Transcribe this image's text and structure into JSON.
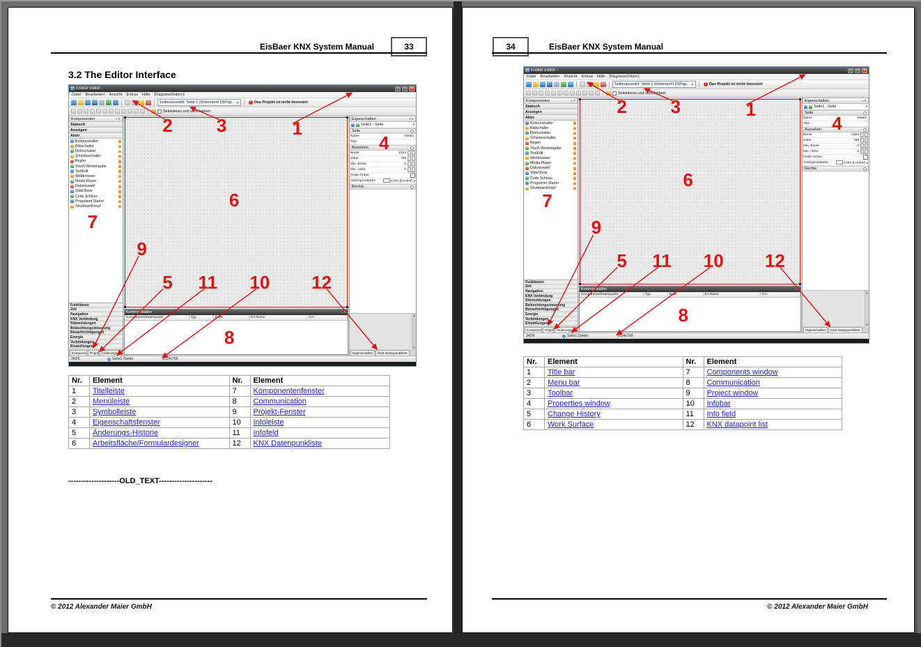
{
  "document": {
    "header_title": "EisBaer KNX System Manual",
    "footer_copyright": "© 2012 Alexander Maier GmbH"
  },
  "pages": {
    "left": {
      "page_number": "33",
      "section_heading": "3.2 The Editor Interface",
      "old_text_marker": "--------------------OLD_TEXT---------------------",
      "table": {
        "col_headers": [
          "Nr.",
          "Element",
          "Nr.",
          "Element"
        ],
        "rows": [
          {
            "n1": "1",
            "e1": "Titelleiste",
            "n2": "7",
            "e2": "Komponentenfenster"
          },
          {
            "n1": "2",
            "e1": "Menüleiste",
            "n2": "8",
            "e2": "Communication"
          },
          {
            "n1": "3",
            "e1": "Symbolleiste",
            "n2": "9",
            "e2": "Projekt-Fenster"
          },
          {
            "n1": "4",
            "e1": "Eigenschaftsfenster",
            "n2": "10",
            "e2": "Infoleiste"
          },
          {
            "n1": "5",
            "e1": "Änderungs-Historie",
            "n2": "11",
            "e2": "Infofeld"
          },
          {
            "n1": "6",
            "e1": "Arbeitsfläche/Formulardesigner",
            "n2": "12",
            "e2": "KNX Datenpunkliste"
          }
        ]
      }
    },
    "right": {
      "page_number": "34",
      "table": {
        "col_headers": [
          "Nr.",
          "Element",
          "Nr.",
          "Element"
        ],
        "rows": [
          {
            "n1": "1",
            "e1": "Title bar",
            "n2": "7",
            "e2": "Components window"
          },
          {
            "n1": "2",
            "e1": "Menu bar",
            "n2": "8",
            "e2": "Communication"
          },
          {
            "n1": "3",
            "e1": "Toolbar",
            "n2": "9",
            "e2": "Project window"
          },
          {
            "n1": "4",
            "e1": "Properties window",
            "n2": "10",
            "e2": "Infobar"
          },
          {
            "n1": "5",
            "e1": "Change History",
            "n2": "11",
            "e2": "Info field"
          },
          {
            "n1": "6",
            "e1": "Work Surface",
            "n2": "12",
            "e2": "KNX datapoint list"
          }
        ]
      }
    }
  },
  "editor": {
    "title": "EisBär Editor -",
    "window_buttons": {
      "minimize": "–",
      "maximize": "□",
      "close": "×"
    },
    "menus": [
      "Datei",
      "Bearbeiten",
      "Ansicht",
      "Extras",
      "Hilfe",
      "Diagnose(Intern)"
    ],
    "toolbar": {
      "page_select_label": "Seitenauswahl:",
      "page_select_value": "Seite 1 (Unbenannt (ISPag...",
      "license_warning": "Das Projekt ist nicht lizensiert",
      "select_move_label": "Selektieren und verschieben"
    },
    "components_panel": {
      "title": "Komponenten",
      "groups": [
        "Statisch",
        "Anzeigen",
        "Aktiv"
      ],
      "items": [
        "Buttonschalter",
        "Bildschalter",
        "Drehschalter",
        "Schiebeschalter",
        "Regler",
        "Touch Werteingabe",
        "TextEdit",
        "Webbrowser",
        "Media Player",
        "Datumswahl",
        "SlideShow",
        "Code Schloss",
        "Programm Starter",
        "ShutdownKnopf"
      ]
    },
    "project_panel": {
      "items": [
        "Funktionen",
        "Zeit",
        "Navigation",
        "KNX Verbindung",
        "Störmeldungen",
        "Beleuchtungssteuerung",
        "Benachrichtigungen",
        "Energie",
        "Verbindungen",
        "Einstellungen"
      ],
      "tabs": [
        "Komponenten",
        "Projekt",
        "Änderungs-Historie"
      ]
    },
    "properties_panel": {
      "title": "Eigenschaften",
      "selector": "Seite1 - Seite",
      "sections": [
        {
          "name": "Seite",
          "rows": [
            {
              "label": "Name",
              "value": "Seite1",
              "ctl": ""
            },
            {
              "label": "Titel",
              "value": "",
              "ctl": ""
            }
          ]
        },
        {
          "name": "Aussehen",
          "rows": [
            {
              "label": "Breite",
              "value": "1024",
              "ctl": "spin"
            },
            {
              "label": "Höhe",
              "value": "768",
              "ctl": "spin"
            },
            {
              "label": "Min. Breite",
              "value": "0",
              "ctl": "spin"
            },
            {
              "label": "Min. Höhe",
              "value": "0",
              "ctl": "spin"
            },
            {
              "label": "Feste Größe",
              "value": "",
              "ctl": "check"
            },
            {
              "label": "Hintergrundfarbe",
              "value": "Color [Control]",
              "ctl": "color"
            }
          ]
        },
        {
          "name": "Rechte",
          "rows": []
        }
      ],
      "tabs": [
        "Eigenschaften",
        "KNX Datenpunktliste"
      ]
    },
    "comm_panel": {
      "title": "Kommunikation",
      "columns": [
        "Komponente/Datenpunkt",
        "Typ",
        "Rolle",
        "EA Name",
        "GA"
      ]
    },
    "statusbar": {
      "left": "342/6",
      "page": "Seite1 (Seite)",
      "resolution": "1024x768"
    },
    "annotation_labels": [
      "1",
      "2",
      "3",
      "4",
      "5",
      "6",
      "7",
      "8",
      "9",
      "10",
      "11",
      "12"
    ],
    "annotation_color": "#dd1414"
  }
}
